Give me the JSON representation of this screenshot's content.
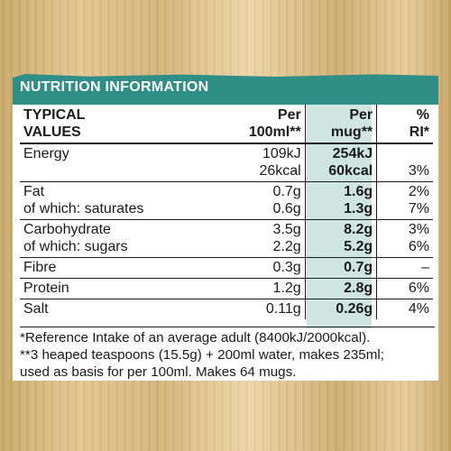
{
  "title": "NUTRITION INFORMATION",
  "headers": {
    "typical": "TYPICAL",
    "values": "VALUES",
    "per100_l1": "Per",
    "per100_l2": "100ml**",
    "permug_l1": "Per",
    "permug_l2": "mug**",
    "ri_l1": "%",
    "ri_l2": "RI*"
  },
  "rows": [
    {
      "label1": "Energy",
      "label2": "",
      "p100_1": "109kJ",
      "p100_2": "26kcal",
      "mug_1": "254kJ",
      "mug_2": "60kcal",
      "ri_1": "",
      "ri_2": "3%"
    },
    {
      "label1": "Fat",
      "label2": "of which: saturates",
      "p100_1": "0.7g",
      "p100_2": "0.6g",
      "mug_1": "1.6g",
      "mug_2": "1.3g",
      "ri_1": "2%",
      "ri_2": "7%"
    },
    {
      "label1": "Carbohydrate",
      "label2": "of which: sugars",
      "p100_1": "3.5g",
      "p100_2": "2.2g",
      "mug_1": "8.2g",
      "mug_2": "5.2g",
      "ri_1": "3%",
      "ri_2": "6%"
    },
    {
      "label1": "Fibre",
      "p100_1": "0.3g",
      "mug_1": "0.7g",
      "ri_1": "–"
    },
    {
      "label1": "Protein",
      "p100_1": "1.2g",
      "mug_1": "2.8g",
      "ri_1": "6%"
    },
    {
      "label1": "Salt",
      "p100_1": "0.11g",
      "mug_1": "0.26g",
      "ri_1": "4%"
    }
  ],
  "footnotes": [
    "*Reference Intake of an average adult (8400kJ/2000kcal).",
    "**3 heaped teaspoons (15.5g) + 200ml water, makes 235ml;",
    "used as basis for per 100ml. Makes 64 mugs."
  ],
  "colors": {
    "banner": "#2f8f86",
    "mug_column": "#cfe6e0",
    "background": "#d9bd84"
  }
}
